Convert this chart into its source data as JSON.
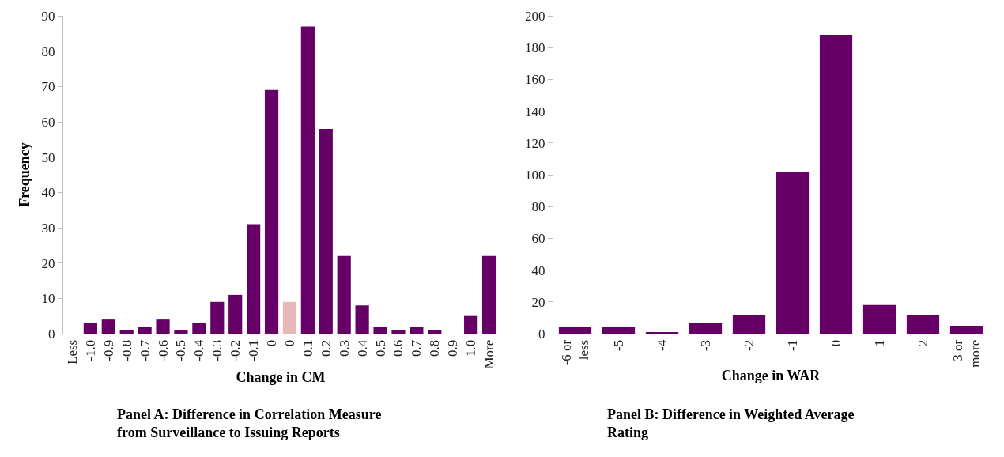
{
  "chart_data": [
    {
      "type": "bar",
      "title": "Panel A: Difference in Correlation Measure from Surveillance to Issuing Reports",
      "xlabel": "Change in CM",
      "ylabel": "Frequency",
      "categories": [
        "Less",
        "-1.0",
        "-0.9",
        "-0.8",
        "-0.7",
        "-0.6",
        "-0.5",
        "-0.4",
        "-0.3",
        "-0.2",
        "-0.1",
        "0",
        "0",
        "0.1",
        "0.2",
        "0.3",
        "0.4",
        "0.5",
        "0.6",
        "0.7",
        "0.8",
        "0.9",
        "1.0",
        "More"
      ],
      "values": [
        0,
        3,
        4,
        1,
        2,
        4,
        1,
        3,
        9,
        11,
        31,
        69,
        9,
        87,
        58,
        22,
        8,
        2,
        1,
        2,
        1,
        0,
        5,
        22
      ],
      "colors": [
        "#660066",
        "#660066",
        "#660066",
        "#660066",
        "#660066",
        "#660066",
        "#660066",
        "#660066",
        "#660066",
        "#660066",
        "#660066",
        "#660066",
        "#e6b9b8",
        "#660066",
        "#660066",
        "#660066",
        "#660066",
        "#660066",
        "#660066",
        "#660066",
        "#660066",
        "#660066",
        "#660066",
        "#660066"
      ],
      "ylim": [
        0,
        90
      ],
      "yticks": [
        0,
        10,
        20,
        30,
        40,
        50,
        60,
        70,
        80,
        90
      ],
      "grid": false
    },
    {
      "type": "bar",
      "title": "Panel B: Difference in Weighted Average Rating",
      "xlabel": "Change in WAR",
      "categories": [
        "-6 or less",
        "-5",
        "-4",
        "-3",
        "-2",
        "-1",
        "0",
        "1",
        "2",
        "3 or more"
      ],
      "values": [
        4,
        4,
        1,
        7,
        12,
        102,
        188,
        18,
        12,
        5
      ],
      "colors": [
        "#660066",
        "#660066",
        "#660066",
        "#660066",
        "#660066",
        "#660066",
        "#660066",
        "#660066",
        "#660066",
        "#660066"
      ],
      "ylim": [
        0,
        200
      ],
      "yticks": [
        0,
        20,
        40,
        60,
        80,
        100,
        120,
        140,
        160,
        180,
        200
      ],
      "grid": false
    }
  ]
}
